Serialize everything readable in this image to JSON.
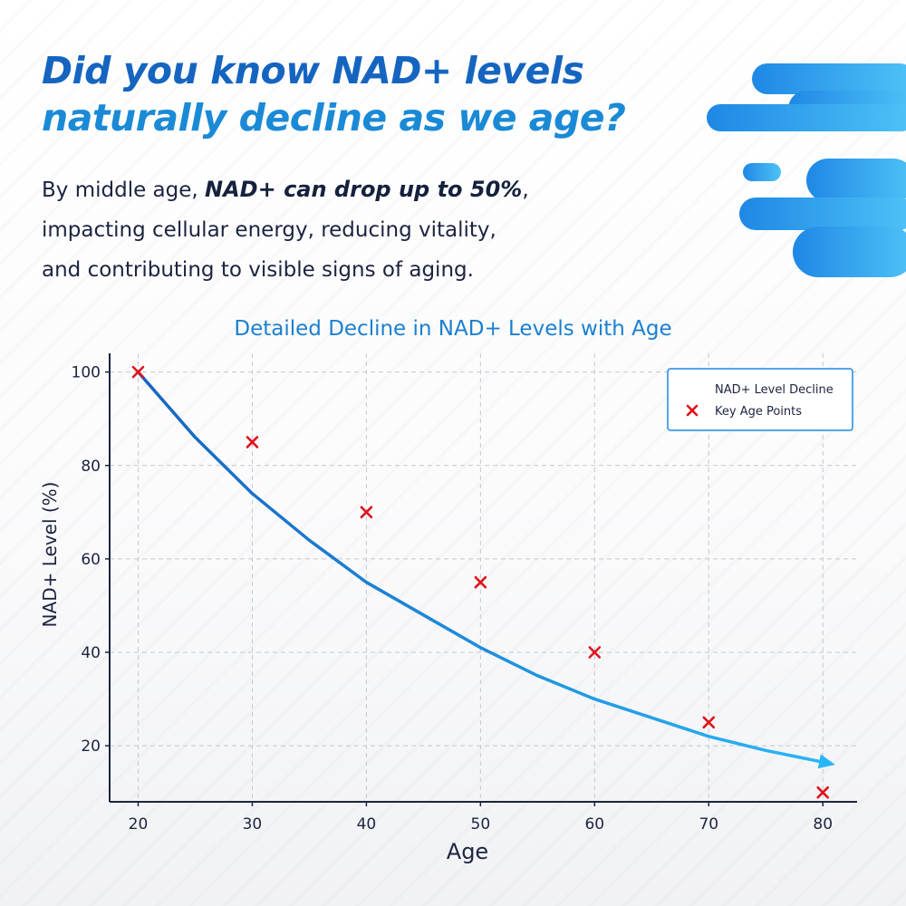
{
  "headline": {
    "line1": "Did you know NAD+ levels",
    "line2": "naturally decline as we age?"
  },
  "intro": {
    "prefix": "By middle age, ",
    "emphasis": "NAD+ can drop up to 50%",
    "line1_end": ",",
    "line2": "impacting cellular energy, reducing vitality,",
    "line3": "and contributing to visible signs of aging."
  },
  "colors": {
    "accent_dark": "#1565c0",
    "accent_light": "#1a8ad6",
    "curve_start": "#1565c0",
    "curve_end": "#29b6f6",
    "marker": "#e0141b",
    "decor_dark": "#1e88e5",
    "decor_light": "#4fc3f7"
  },
  "chart_data": {
    "type": "line",
    "title": "Detailed Decline in NAD+ Levels with Age",
    "xlabel": "Age",
    "ylabel": "NAD+ Level (%)",
    "xlim": [
      17.5,
      83
    ],
    "ylim": [
      8,
      104
    ],
    "xticks": [
      20,
      30,
      40,
      50,
      60,
      70,
      80
    ],
    "yticks": [
      20,
      40,
      60,
      80,
      100
    ],
    "grid": true,
    "legend_position": "top-right",
    "series": [
      {
        "name": "NAD+ Level Decline",
        "kind": "line",
        "color": "#1e88e5",
        "arrow_end": true,
        "x": [
          20,
          25,
          30,
          35,
          40,
          45,
          50,
          55,
          60,
          65,
          70,
          75,
          80
        ],
        "y": [
          100,
          86,
          74,
          64,
          55,
          48,
          41,
          35,
          30,
          26,
          22,
          19,
          16.5
        ]
      },
      {
        "name": "Key Age Points",
        "kind": "scatter",
        "marker": "x",
        "color": "#e0141b",
        "x": [
          20,
          30,
          40,
          50,
          60,
          70,
          80
        ],
        "y": [
          100,
          85,
          70,
          55,
          40,
          25,
          10
        ]
      }
    ]
  }
}
